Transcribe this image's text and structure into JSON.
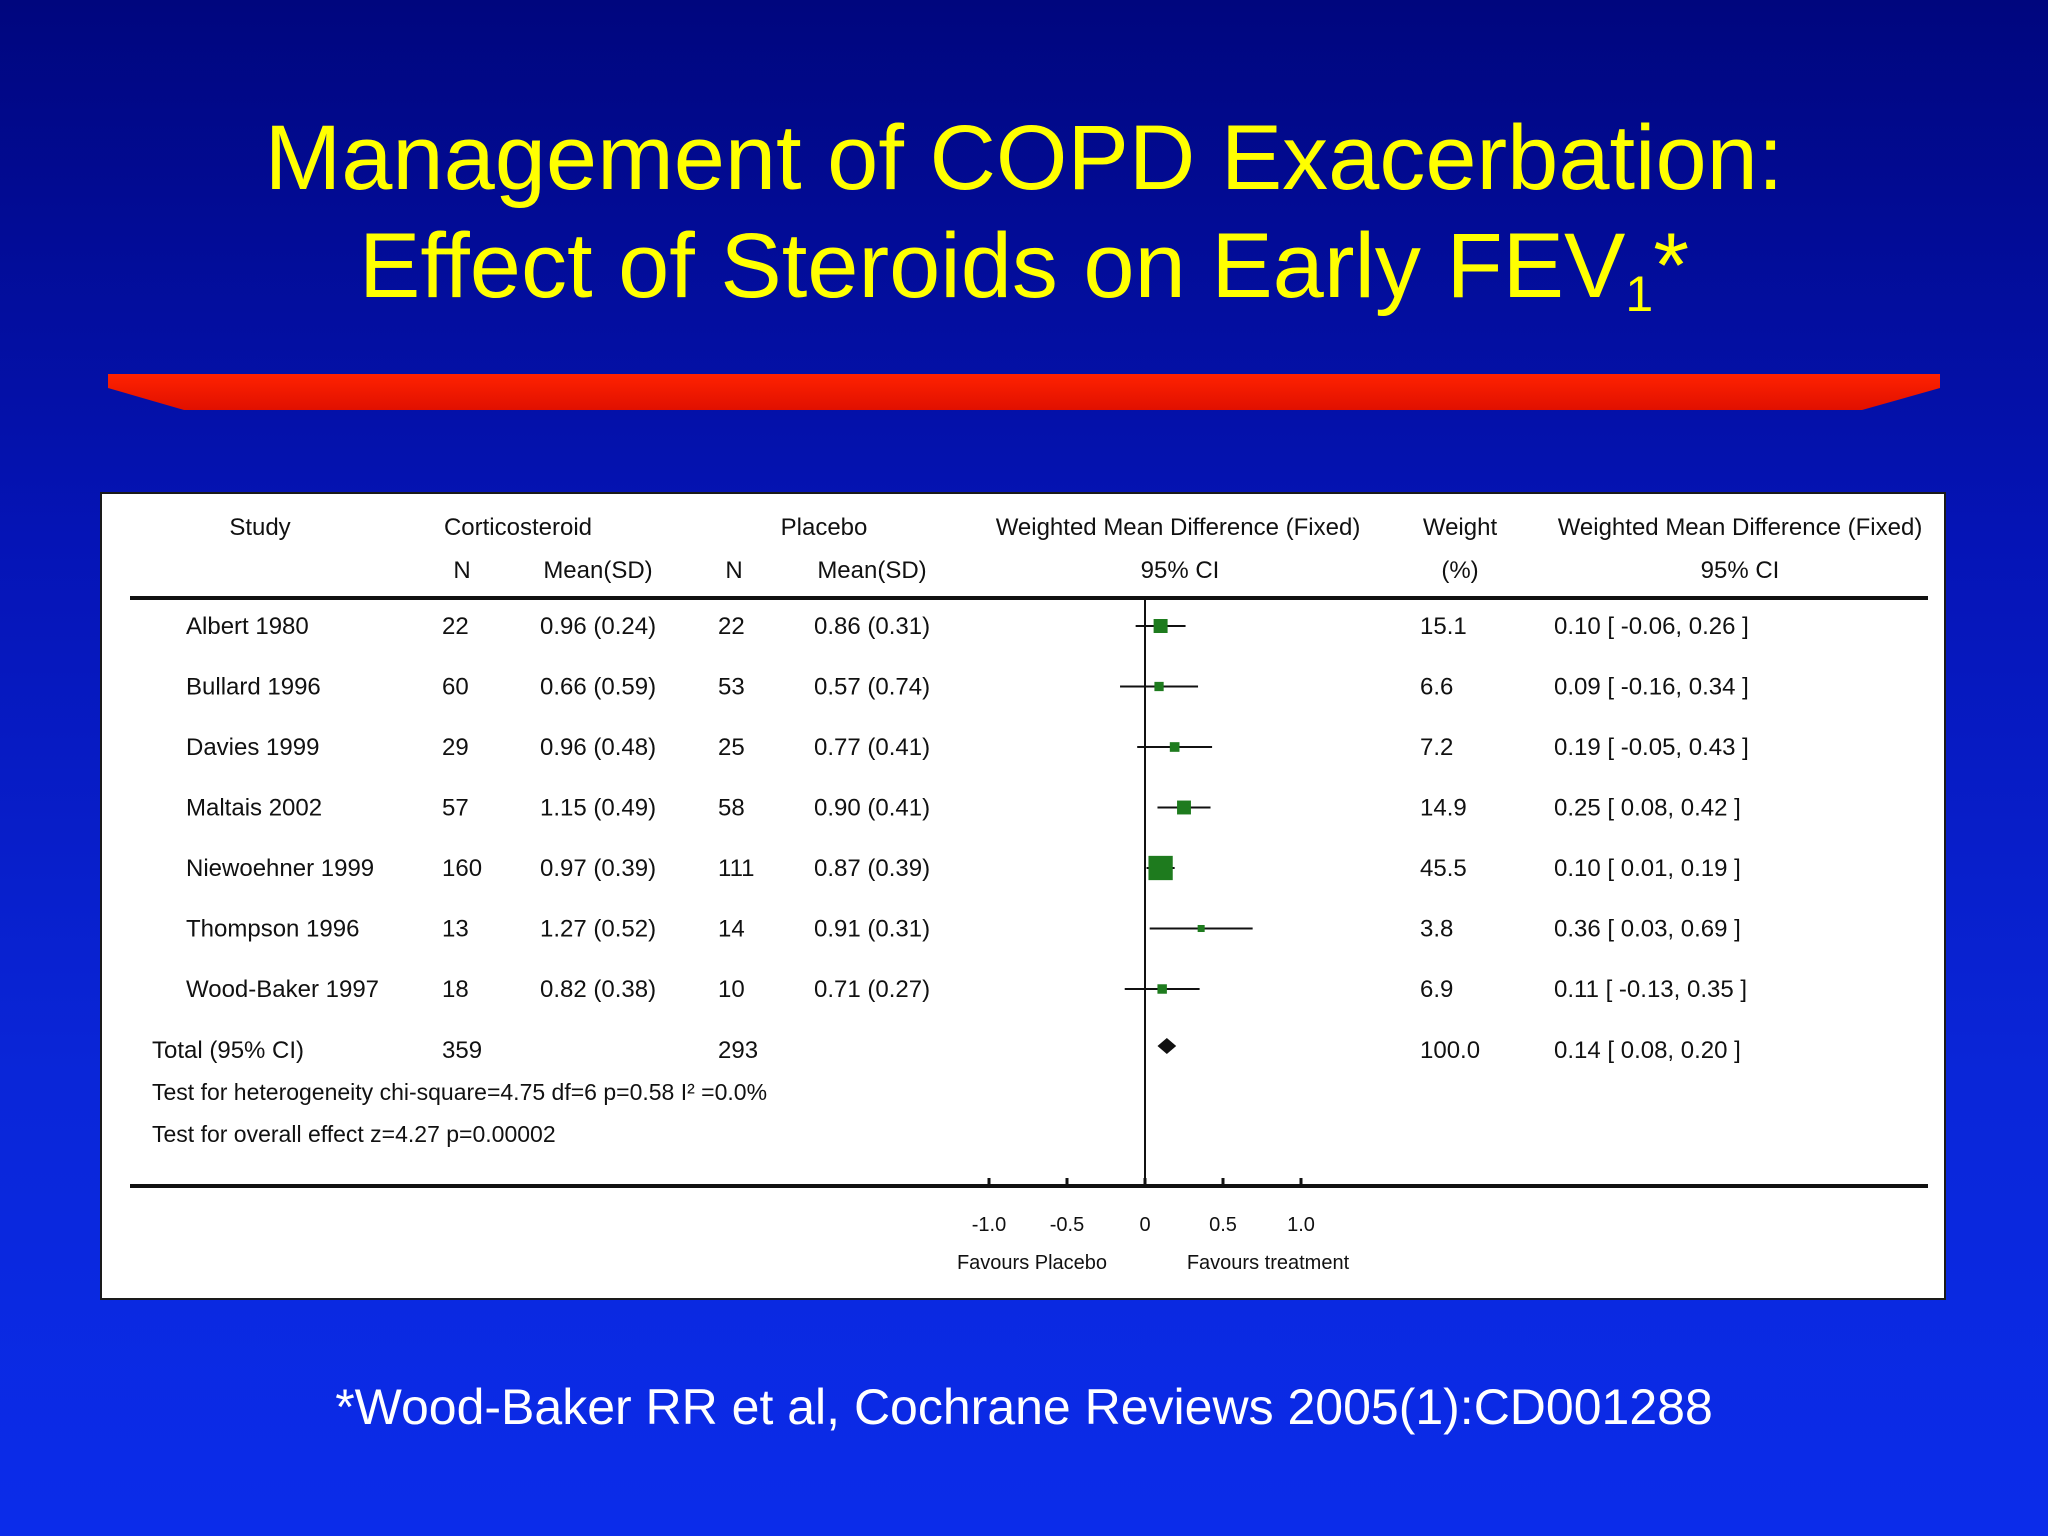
{
  "slide": {
    "title_line1": "Management of COPD Exacerbation:",
    "title_line2": "Effect of Steroids on Early FEV",
    "title_sub": "1",
    "title_suffix": "*",
    "citation": "*Wood-Baker RR et al, Cochrane Reviews 2005(1):CD001288",
    "colors": {
      "title": "#ffff00",
      "bar": "#ff1a00",
      "marker": "#1e7b1e",
      "background": "#0514b6"
    }
  },
  "chart_data": {
    "type": "forest",
    "headers": {
      "study": "Study",
      "group1": "Corticosteroid",
      "group2": "Placebo",
      "n": "N",
      "mean_sd": "Mean(SD)",
      "wmd": "Weighted Mean Difference (Fixed)",
      "ci": "95% CI",
      "weight": "Weight",
      "weight_unit": "(%)"
    },
    "studies": [
      {
        "study": "Albert 1980",
        "n1": "22",
        "ms1": "0.96 (0.24)",
        "n2": "22",
        "ms2": "0.86 (0.31)",
        "weight": "15.1",
        "wmd_text": "0.10 [ -0.06, 0.26 ]",
        "est": 0.1,
        "lo": -0.06,
        "hi": 0.26,
        "w": 15.1
      },
      {
        "study": "Bullard 1996",
        "n1": "60",
        "ms1": "0.66 (0.59)",
        "n2": "53",
        "ms2": "0.57 (0.74)",
        "weight": "6.6",
        "wmd_text": "0.09 [ -0.16, 0.34 ]",
        "est": 0.09,
        "lo": -0.16,
        "hi": 0.34,
        "w": 6.6
      },
      {
        "study": "Davies 1999",
        "n1": "29",
        "ms1": "0.96 (0.48)",
        "n2": "25",
        "ms2": "0.77 (0.41)",
        "weight": "7.2",
        "wmd_text": "0.19 [ -0.05, 0.43 ]",
        "est": 0.19,
        "lo": -0.05,
        "hi": 0.43,
        "w": 7.2
      },
      {
        "study": "Maltais 2002",
        "n1": "57",
        "ms1": "1.15 (0.49)",
        "n2": "58",
        "ms2": "0.90 (0.41)",
        "weight": "14.9",
        "wmd_text": "0.25 [ 0.08, 0.42 ]",
        "est": 0.25,
        "lo": 0.08,
        "hi": 0.42,
        "w": 14.9
      },
      {
        "study": "Niewoehner 1999",
        "n1": "160",
        "ms1": "0.97 (0.39)",
        "n2": "111",
        "ms2": "0.87 (0.39)",
        "weight": "45.5",
        "wmd_text": "0.10 [ 0.01, 0.19 ]",
        "est": 0.1,
        "lo": 0.01,
        "hi": 0.19,
        "w": 45.5
      },
      {
        "study": "Thompson 1996",
        "n1": "13",
        "ms1": "1.27 (0.52)",
        "n2": "14",
        "ms2": "0.91 (0.31)",
        "weight": "3.8",
        "wmd_text": "0.36 [ 0.03, 0.69 ]",
        "est": 0.36,
        "lo": 0.03,
        "hi": 0.69,
        "w": 3.8
      },
      {
        "study": "Wood-Baker 1997",
        "n1": "18",
        "ms1": "0.82 (0.38)",
        "n2": "10",
        "ms2": "0.71 (0.27)",
        "weight": "6.9",
        "wmd_text": "0.11 [ -0.13, 0.35 ]",
        "est": 0.11,
        "lo": -0.13,
        "hi": 0.35,
        "w": 6.9
      }
    ],
    "total": {
      "label": "Total (95% CI)",
      "n1": "359",
      "n2": "293",
      "weight": "100.0",
      "wmd_text": "0.14 [ 0.08, 0.20 ]",
      "est": 0.14,
      "lo": 0.08,
      "hi": 0.2
    },
    "heterogeneity": "Test for heterogeneity chi-square=4.75 df=6 p=0.58 I² =0.0%",
    "overall_effect": "Test for overall effect z=4.27    p=0.00002",
    "x_ticks": [
      {
        "value": -1.0,
        "label": "-1.0"
      },
      {
        "value": -0.5,
        "label": "-0.5"
      },
      {
        "value": 0,
        "label": "0"
      },
      {
        "value": 0.5,
        "label": "0.5"
      },
      {
        "value": 1.0,
        "label": "1.0"
      }
    ],
    "xlim": [
      -1.0,
      1.0
    ],
    "favours_left": "Favours Placebo",
    "favours_right": "Favours treatment"
  }
}
